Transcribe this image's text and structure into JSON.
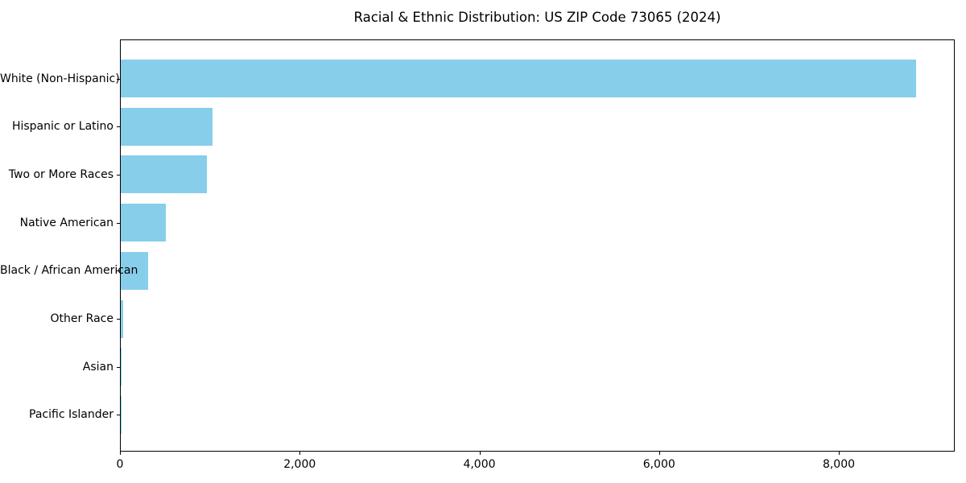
{
  "chart_data": {
    "type": "bar",
    "orientation": "horizontal",
    "title": "Racial & Ethnic Distribution: US ZIP Code 73065 (2024)",
    "categories": [
      "White (Non-Hispanic)",
      "Hispanic or Latino",
      "Two or More Races",
      "Native American",
      "Black / African American",
      "Other Race",
      "Asian",
      "Pacific Islander"
    ],
    "values": [
      8850,
      1025,
      955,
      500,
      305,
      30,
      10,
      4
    ],
    "xlabel": "",
    "ylabel": "",
    "xlim": [
      0,
      9290
    ],
    "xticks": {
      "values": [
        0,
        2000,
        4000,
        6000,
        8000
      ],
      "labels": [
        "0",
        "2,000",
        "4,000",
        "6,000",
        "8,000"
      ]
    },
    "grid": false,
    "legend": null,
    "bar_color": "#87CEEB",
    "background_color": "#ffffff",
    "text_color": "#000000",
    "spine_color": "#000000"
  }
}
